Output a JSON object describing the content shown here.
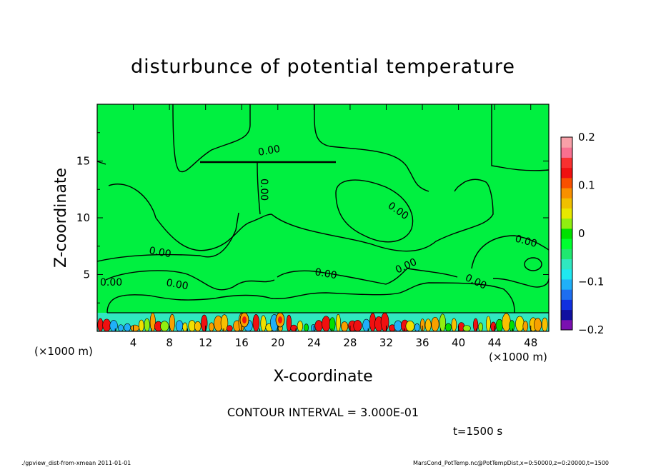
{
  "chart_data": {
    "type": "contour",
    "title": "disturbunce of potential temperature",
    "xlabel": "X-coordinate",
    "ylabel": "Z-coordinate",
    "x_unit_left": "(×1000 m)",
    "x_unit_right": "(×1000 m)",
    "xlim": [
      0,
      50
    ],
    "ylim": [
      0,
      20
    ],
    "x_ticks": [
      "4",
      "8",
      "12",
      "16",
      "20",
      "24",
      "28",
      "32",
      "36",
      "40",
      "44",
      "48"
    ],
    "y_ticks": [
      "5",
      "10",
      "15"
    ],
    "contour_label": "0.00",
    "contour_interval_text": "CONTOUR INTERVAL = 3.000E-01",
    "time_text": "t=1500 s",
    "colorbar": {
      "range": [
        -0.2,
        0.2
      ],
      "tick_labels": [
        "0.2",
        "0.1",
        "0",
        "−0.1",
        "−0.2"
      ],
      "colors": [
        "#7a10b0",
        "#1010a0",
        "#1030e0",
        "#1e6ef0",
        "#20b0f8",
        "#20e8f0",
        "#30e8c0",
        "#20e870",
        "#00ff30",
        "#00e000",
        "#90ee10",
        "#e8e800",
        "#f0c000",
        "#f89000",
        "#f85000",
        "#f01010",
        "#f83030",
        "#f87090",
        "#f8a0a8"
      ]
    }
  },
  "footer": {
    "left": "./gpview_dist-from-xmean  2011-01-01",
    "right": "MarsCond_PotTemp.nc@PotTempDist,x=0:50000,z=0:20000,t=1500"
  }
}
